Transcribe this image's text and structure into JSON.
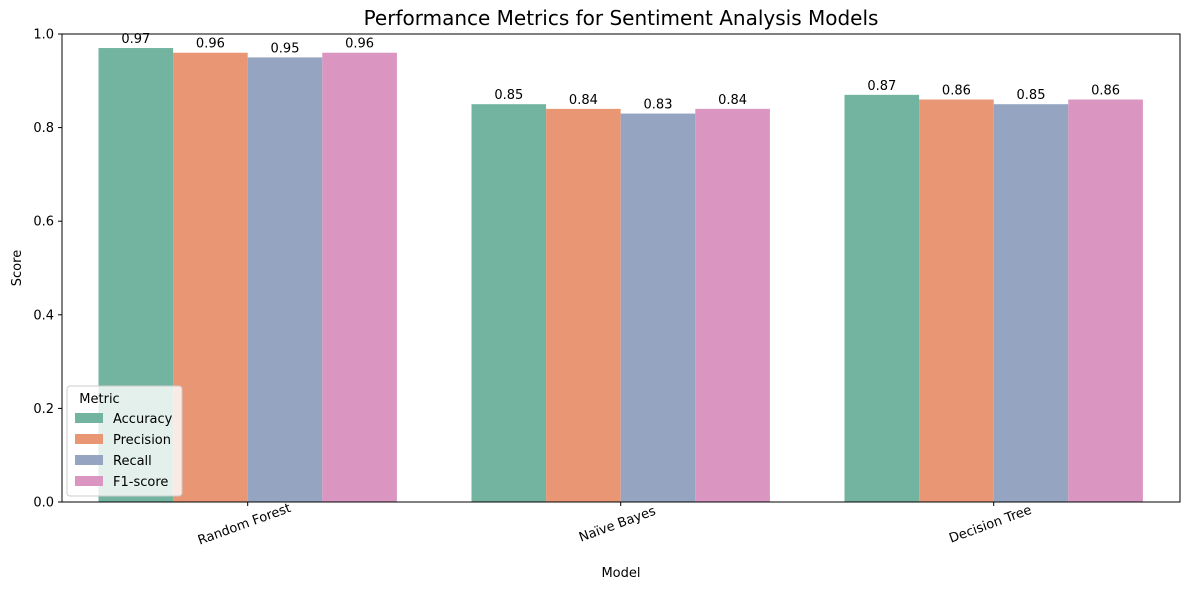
{
  "chart_data": {
    "type": "bar",
    "title": "Performance Metrics for Sentiment Analysis Models",
    "xlabel": "Model",
    "ylabel": "Score",
    "categories": [
      "Random Forest",
      "Naïve Bayes",
      "Decision Tree"
    ],
    "series": [
      {
        "name": "Accuracy",
        "values": [
          0.97,
          0.85,
          0.87
        ],
        "color": "#72b4a0"
      },
      {
        "name": "Precision",
        "values": [
          0.96,
          0.84,
          0.86
        ],
        "color": "#e99675"
      },
      {
        "name": "Recall",
        "values": [
          0.95,
          0.83,
          0.85
        ],
        "color": "#95a4c1"
      },
      {
        "name": "F1-score",
        "values": [
          0.96,
          0.84,
          0.86
        ],
        "color": "#da95c0"
      }
    ],
    "ylim": [
      0,
      1.0
    ],
    "yticks": [
      "0.0",
      "0.2",
      "0.4",
      "0.6",
      "0.8",
      "1.0"
    ],
    "value_labels": [
      [
        "0.97",
        "0.85",
        "0.87"
      ],
      [
        "0.96",
        "0.84",
        "0.86"
      ],
      [
        "0.95",
        "0.83",
        "0.85"
      ],
      [
        "0.96",
        "0.84",
        "0.86"
      ]
    ],
    "legend": {
      "title": "Metric",
      "position": "lower-left"
    },
    "grid": false
  }
}
